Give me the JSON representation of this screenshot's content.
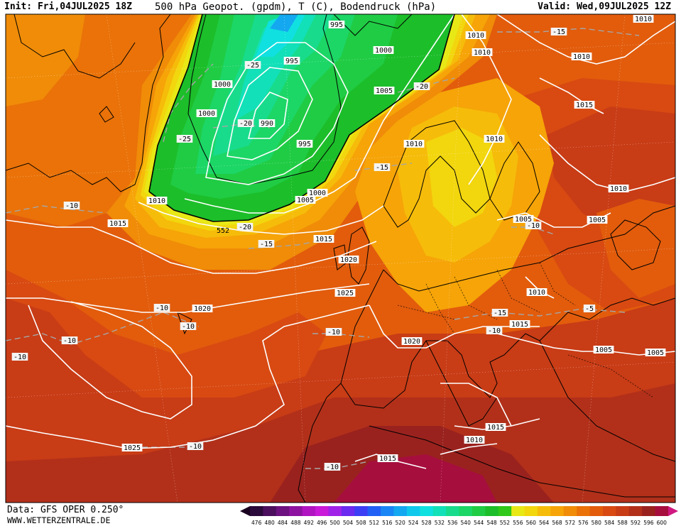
{
  "header": {
    "init": "Init: Fri,04JUL2025 18Z",
    "title": "500 hPa Geopot. (gpdm), T (C), Bodendruck (hPa)",
    "valid": "Valid: Wed,09JUL2025 12Z"
  },
  "footer": {
    "data_source": "Data: GFS OPER 0.250°",
    "website": "WWW.WETTERZENTRALE.DE"
  },
  "colors": {
    "land_outline": "#000000",
    "isobar": "#ffffff",
    "isotherm": "#a6a6a6",
    "label_box": "#ffffff"
  },
  "colorbar": {
    "ticks": [
      "476",
      "480",
      "484",
      "488",
      "492",
      "496",
      "500",
      "504",
      "508",
      "512",
      "516",
      "520",
      "524",
      "528",
      "532",
      "536",
      "540",
      "544",
      "548",
      "552",
      "556",
      "560",
      "564",
      "568",
      "572",
      "576",
      "580",
      "584",
      "588",
      "592",
      "596",
      "600"
    ],
    "colors": [
      "#2a0a3a",
      "#4b0f5e",
      "#6c117f",
      "#8d13a0",
      "#b015c1",
      "#c81ad8",
      "#a022e8",
      "#6a2af0",
      "#3c3ef5",
      "#2260f5",
      "#1a86f5",
      "#14a8f0",
      "#10c8ec",
      "#10e0e0",
      "#12e0b8",
      "#18dc8c",
      "#1cd666",
      "#20cc44",
      "#1cbe2a",
      "#30c81a",
      "#e8e816",
      "#f2d60e",
      "#f6bc0a",
      "#f6a408",
      "#f08c08",
      "#ea7208",
      "#e25c0c",
      "#d84a12",
      "#c83c16",
      "#b2301a",
      "#9a221e",
      "#a60e3e"
    ]
  },
  "isobar_labels": [
    {
      "text": "995"
    },
    {
      "text": "995"
    },
    {
      "text": "1000"
    },
    {
      "text": "1000"
    },
    {
      "text": "1000"
    },
    {
      "text": "990"
    },
    {
      "text": "995"
    },
    {
      "text": "1005"
    },
    {
      "text": "1000"
    },
    {
      "text": "1005"
    },
    {
      "text": "1010"
    },
    {
      "text": "1010"
    },
    {
      "text": "1010"
    },
    {
      "text": "1010"
    },
    {
      "text": "1010"
    },
    {
      "text": "1010"
    },
    {
      "text": "1015"
    },
    {
      "text": "1010"
    },
    {
      "text": "1015"
    },
    {
      "text": "1005"
    },
    {
      "text": "1005"
    },
    {
      "text": "1015"
    },
    {
      "text": "1020"
    },
    {
      "text": "1025"
    },
    {
      "text": "1020"
    },
    {
      "text": "1020"
    },
    {
      "text": "1010"
    },
    {
      "text": "1015"
    },
    {
      "text": "1005"
    },
    {
      "text": "1005"
    },
    {
      "text": "1015"
    },
    {
      "text": "1010"
    },
    {
      "text": "1015"
    },
    {
      "text": "1025"
    },
    {
      "text": "1010"
    }
  ],
  "temperature_labels": [
    {
      "text": "-25"
    },
    {
      "text": "-20"
    },
    {
      "text": "-25"
    },
    {
      "text": "-20"
    },
    {
      "text": "-20"
    },
    {
      "text": "-15"
    },
    {
      "text": "-15"
    },
    {
      "text": "-15"
    },
    {
      "text": "-10"
    },
    {
      "text": "-10"
    },
    {
      "text": "-10"
    },
    {
      "text": "-10"
    },
    {
      "text": "-10"
    },
    {
      "text": "-10"
    },
    {
      "text": "-10"
    },
    {
      "text": "-15"
    },
    {
      "text": "-10"
    },
    {
      "text": "-5"
    },
    {
      "text": "-10"
    },
    {
      "text": "-10"
    }
  ],
  "height_label": {
    "text": "552"
  }
}
